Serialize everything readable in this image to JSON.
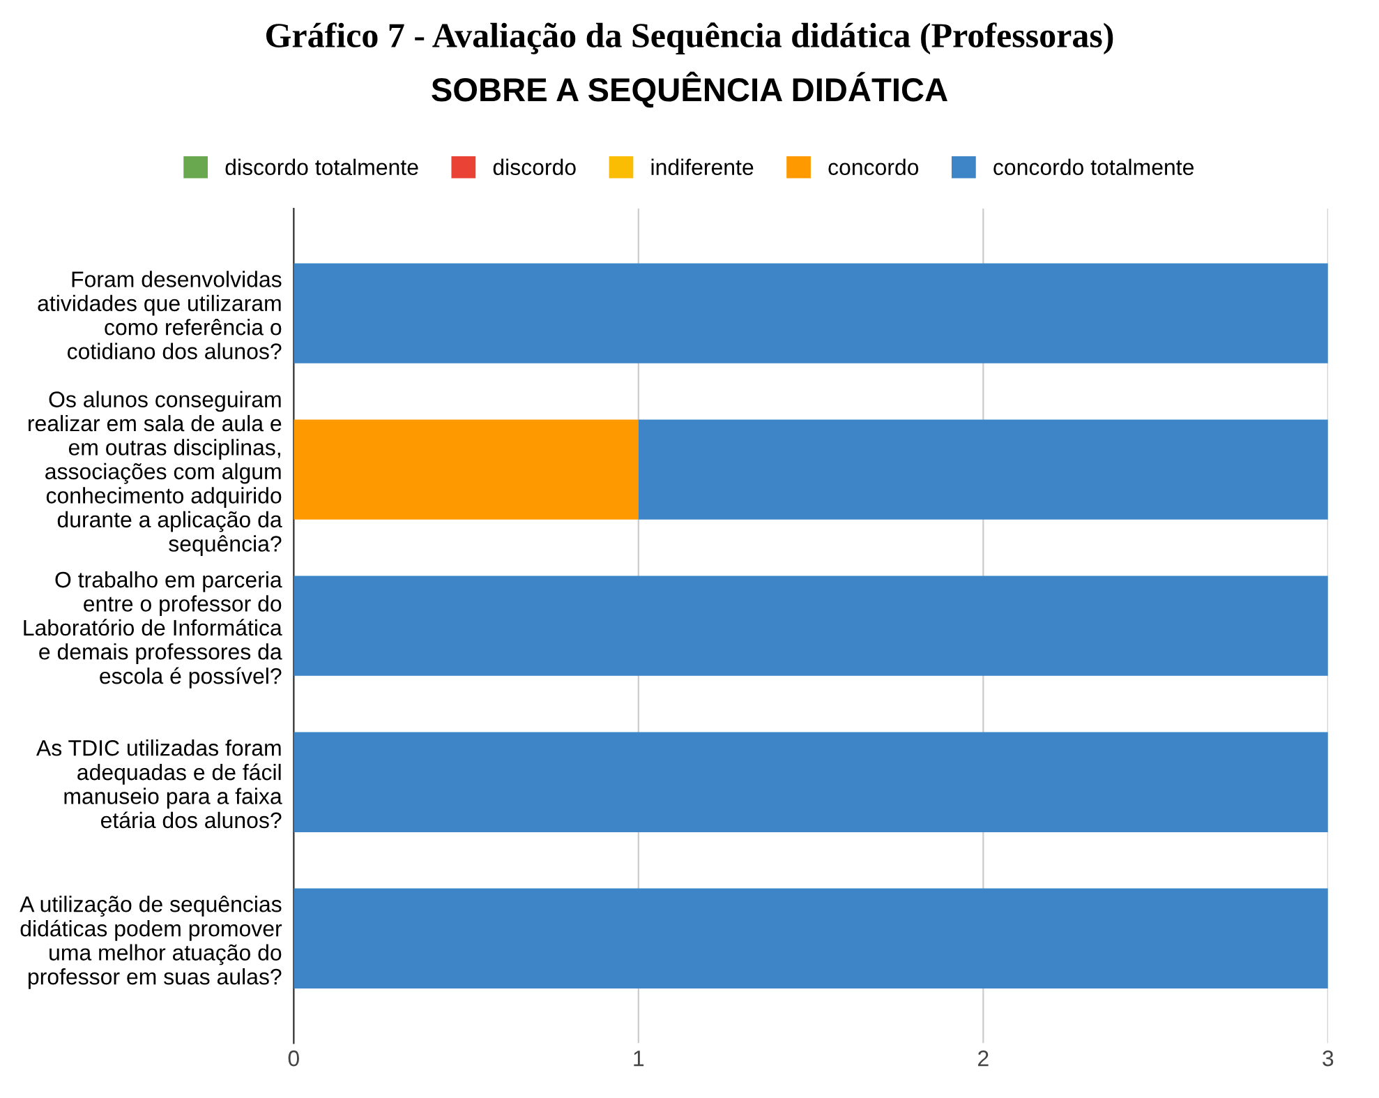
{
  "chart_data": {
    "type": "bar",
    "orientation": "horizontal",
    "stacked": true,
    "title": "Gráfico 7 - Avaliação da Sequência didática (Professoras)",
    "subtitle": "SOBRE A SEQUÊNCIA DIDÁTICA",
    "categories": [
      "Foram desenvolvidas\natividades que utilizaram\ncomo referência o\ncotidiano dos alunos?",
      "Os alunos conseguiram\nrealizar em sala de aula e\nem outras disciplinas,\nassociações com algum\nconhecimento adquirido\ndurante a aplicação da\nsequência?",
      "O trabalho em parceria\nentre o professor do\nLaboratório de Informática\ne demais professores da\nescola é possível?",
      "As TDIC utilizadas foram\nadequadas e de fácil\nmanuseio para a faixa\netária dos alunos?",
      "A utilização de sequências\ndidáticas podem promover\numa melhor atuação do\nprofessor em suas aulas?"
    ],
    "series": [
      {
        "name": "discordo totalmente",
        "color": "#6aa84f",
        "values": [
          0,
          0,
          0,
          0,
          0
        ]
      },
      {
        "name": "discordo",
        "color": "#ea4335",
        "values": [
          0,
          0,
          0,
          0,
          0
        ]
      },
      {
        "name": "indiferente",
        "color": "#fbbc04",
        "values": [
          0,
          0,
          0,
          0,
          0
        ]
      },
      {
        "name": "concordo",
        "color": "#ff9900",
        "values": [
          0,
          1,
          0,
          0,
          0
        ]
      },
      {
        "name": "concordo totalmente",
        "color": "#3d85c6",
        "values": [
          3,
          2,
          3,
          3,
          3
        ]
      }
    ],
    "xlim": [
      0,
      3
    ],
    "xticks": [
      0,
      1,
      2,
      3
    ],
    "grid": "x",
    "legend": "top"
  }
}
